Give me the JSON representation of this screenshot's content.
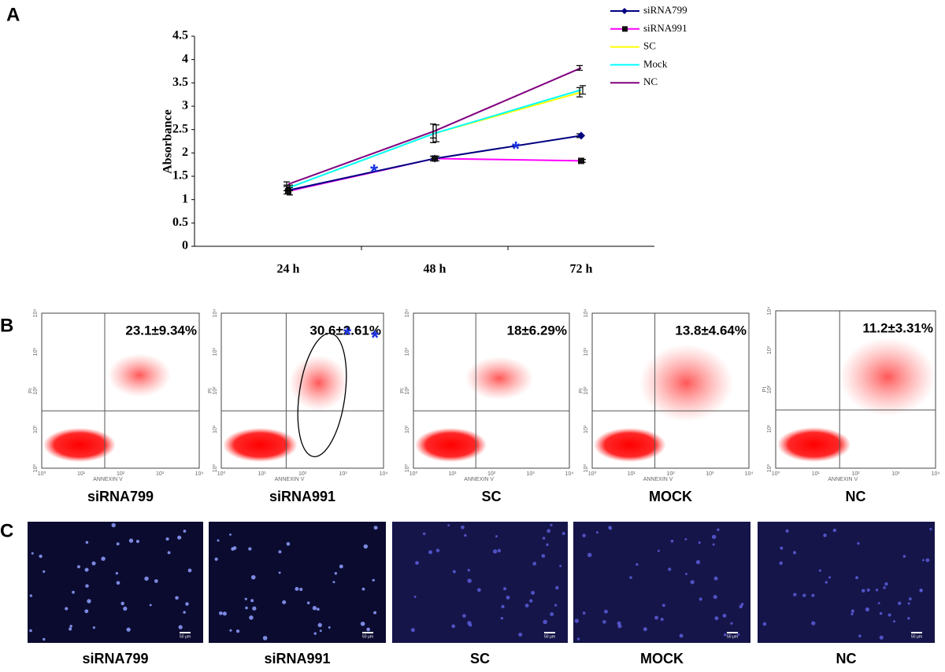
{
  "chart_data": {
    "type": "line",
    "panel": "A",
    "y_label": "Absorbance",
    "categories": [
      "24 h",
      "48 h",
      "72 h"
    ],
    "series": [
      {
        "name": "siRNA799",
        "color": "#000080",
        "marker": "diamond",
        "values": [
          1.2,
          1.88,
          2.37
        ],
        "errors": [
          0.08,
          0.05,
          0.04
        ]
      },
      {
        "name": "siRNA991",
        "color": "#ff00ff",
        "marker": "square",
        "values": [
          1.18,
          1.88,
          1.83
        ],
        "errors": [
          0.08,
          0.05,
          0.03
        ]
      },
      {
        "name": "SC",
        "color": "#ffff00",
        "values": [
          1.25,
          2.42,
          3.3
        ],
        "errors": [
          0.06,
          0.2,
          0.1
        ]
      },
      {
        "name": "Mock",
        "color": "#00ffff",
        "values": [
          1.25,
          2.42,
          3.35
        ],
        "errors": [
          0.06,
          0.18,
          0.09
        ]
      },
      {
        "name": "NC",
        "color": "#800080",
        "values": [
          1.33,
          2.47,
          3.82
        ],
        "errors": [
          0.05,
          0.15,
          0.05
        ]
      }
    ],
    "annotations": [
      "*",
      "*"
    ],
    "ylim": [
      0,
      4.5
    ],
    "yticks": [
      0,
      0.5,
      1,
      1.5,
      2,
      2.5,
      3,
      3.5,
      4,
      4.5
    ],
    "legend": "top-right"
  },
  "flow": {
    "panel": "B",
    "x_label": "ANNEXIN V",
    "y_label": "PI",
    "ticks": [
      "10⁰",
      "10¹",
      "10²",
      "10³",
      "10⁴"
    ],
    "plots": [
      {
        "name": "siRNA799",
        "percent": "23.1±9.34%"
      },
      {
        "name": "siRNA991",
        "percent": "30.6±2.61%"
      },
      {
        "name": "SC",
        "percent": "18±6.29%"
      },
      {
        "name": "MOCK",
        "percent": "13.8±4.64%"
      },
      {
        "name": "NC",
        "percent": "11.2±3.31%"
      }
    ],
    "annotations": [
      "*",
      "*"
    ]
  },
  "micrographs": {
    "panel": "C",
    "scale_bar": "50 μm",
    "names": [
      "siRNA799",
      "siRNA991",
      "SC",
      "MOCK",
      "NC"
    ]
  }
}
